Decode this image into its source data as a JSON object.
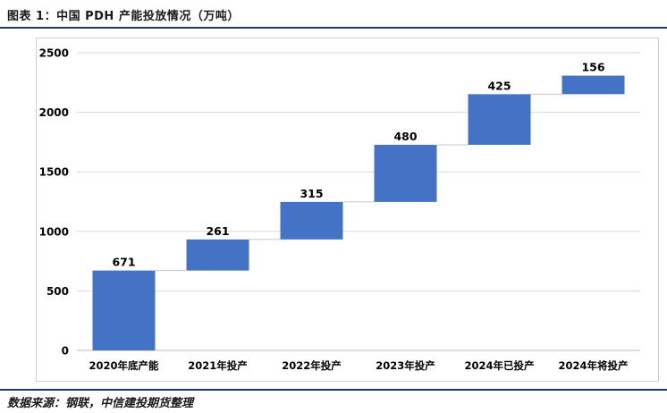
{
  "header": {
    "title": "图表 1：中国 PDH 产能投放情况（万吨）"
  },
  "footer": {
    "source": "数据来源：钢联，中信建投期货整理"
  },
  "colors": {
    "bar": "#4472C4",
    "grid": "#d9d9d9",
    "connector": "#c8c8c8",
    "rule": "#1f3a5f"
  },
  "chart_data": {
    "type": "bar",
    "subtype": "waterfall",
    "title": "",
    "xlabel": "",
    "ylabel": "",
    "categories": [
      "2020年底产能",
      "2021年投产",
      "2022年投产",
      "2023年投产",
      "2024年已投产",
      "2024年将投产"
    ],
    "values": [
      671,
      261,
      315,
      480,
      425,
      156
    ],
    "data_labels": [
      "671",
      "261",
      "315",
      "480",
      "425",
      "156"
    ],
    "ylim": [
      0,
      2500
    ],
    "yticks": [
      0,
      500,
      1000,
      1500,
      2000,
      2500
    ],
    "grid": true,
    "legend": "none"
  }
}
